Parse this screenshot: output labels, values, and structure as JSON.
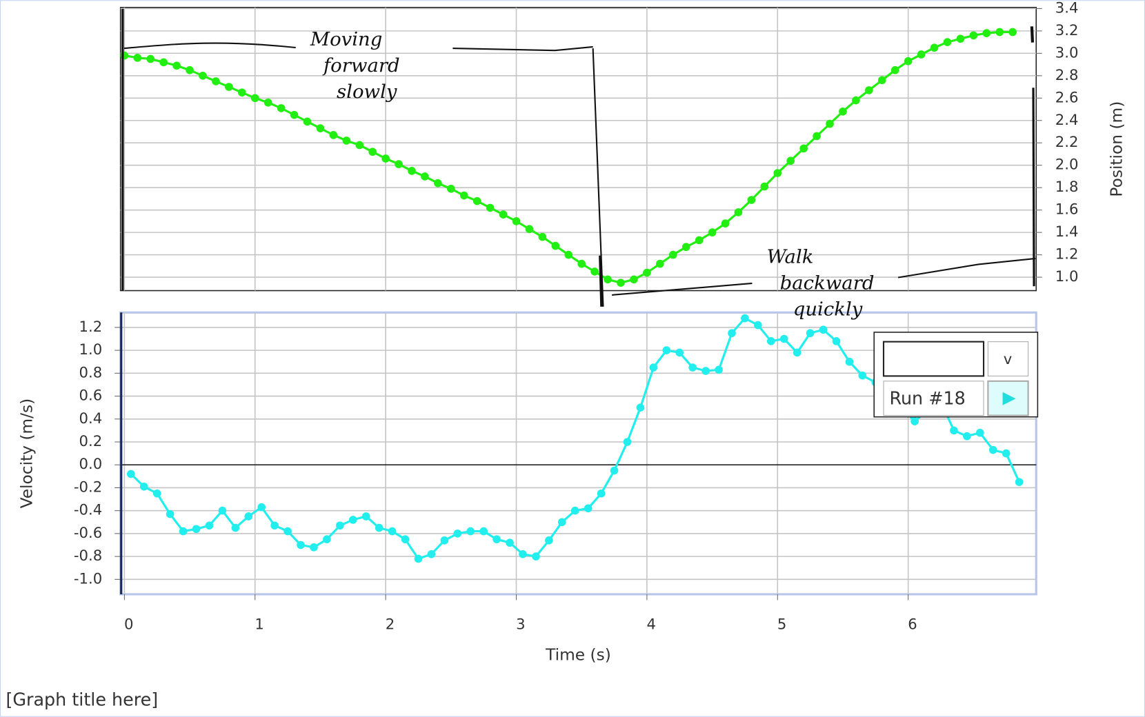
{
  "chart_data": [
    {
      "type": "scatter-line",
      "y_label": "Position (m)",
      "x": [
        0,
        0.1,
        0.2,
        0.3,
        0.4,
        0.5,
        0.6,
        0.7,
        0.8,
        0.9,
        1.0,
        1.1,
        1.2,
        1.3,
        1.4,
        1.5,
        1.6,
        1.7,
        1.8,
        1.9,
        2.0,
        2.1,
        2.2,
        2.3,
        2.4,
        2.5,
        2.6,
        2.7,
        2.8,
        2.9,
        3.0,
        3.1,
        3.2,
        3.3,
        3.4,
        3.5,
        3.6,
        3.7,
        3.8,
        3.9,
        4.0,
        4.1,
        4.2,
        4.3,
        4.4,
        4.5,
        4.6,
        4.7,
        4.8,
        4.9,
        5.0,
        5.1,
        5.2,
        5.3,
        5.4,
        5.5,
        5.6,
        5.7,
        5.8,
        5.9,
        6.0,
        6.1,
        6.2,
        6.3,
        6.4,
        6.5,
        6.6,
        6.7,
        6.8
      ],
      "series": [
        {
          "color": "#22ee11",
          "values": [
            2.98,
            2.96,
            2.95,
            2.92,
            2.89,
            2.85,
            2.8,
            2.75,
            2.7,
            2.65,
            2.6,
            2.56,
            2.51,
            2.45,
            2.39,
            2.33,
            2.27,
            2.22,
            2.18,
            2.12,
            2.06,
            2.01,
            1.95,
            1.9,
            1.84,
            1.79,
            1.73,
            1.68,
            1.62,
            1.56,
            1.5,
            1.43,
            1.36,
            1.28,
            1.2,
            1.12,
            1.05,
            0.98,
            0.95,
            0.98,
            1.04,
            1.12,
            1.2,
            1.27,
            1.33,
            1.4,
            1.48,
            1.58,
            1.69,
            1.81,
            1.93,
            2.04,
            2.15,
            2.26,
            2.37,
            2.48,
            2.58,
            2.67,
            2.76,
            2.85,
            2.93,
            2.99,
            3.05,
            3.1,
            3.13,
            3.16,
            3.18,
            3.19,
            3.19
          ]
        }
      ],
      "xlim": [
        -0.03,
        6.98
      ],
      "ylim": [
        0.88,
        3.41
      ],
      "yticks": [
        {
          "value": 1.0,
          "label": "1.0"
        },
        1.2,
        1.4,
        1.6,
        1.8,
        {
          "value": 2.0,
          "label": "2.0"
        },
        2.2,
        2.4,
        2.6,
        2.8,
        {
          "value": 3.0,
          "label": "3.0"
        },
        3.2,
        3.4
      ],
      "y_axis_side": "right",
      "grid": true,
      "annotations": [
        [
          "Moving",
          "forward",
          "slowly"
        ],
        [
          "Walk",
          "backward",
          "quickly"
        ]
      ]
    },
    {
      "type": "scatter-line",
      "x_label": "Time (s)",
      "y_label": "Velocity (m/s)",
      "x": [
        0.05,
        0.15,
        0.25,
        0.35,
        0.45,
        0.55,
        0.65,
        0.75,
        0.85,
        0.95,
        1.05,
        1.15,
        1.25,
        1.35,
        1.45,
        1.55,
        1.65,
        1.75,
        1.85,
        1.95,
        2.05,
        2.15,
        2.25,
        2.35,
        2.45,
        2.55,
        2.65,
        2.75,
        2.85,
        2.95,
        3.05,
        3.15,
        3.25,
        3.35,
        3.45,
        3.55,
        3.65,
        3.75,
        3.85,
        3.95,
        4.05,
        4.15,
        4.25,
        4.35,
        4.45,
        4.55,
        4.65,
        4.75,
        4.85,
        4.95,
        5.05,
        5.15,
        5.25,
        5.35,
        5.45,
        5.55,
        5.65,
        5.75,
        5.85,
        5.95,
        6.05,
        6.15,
        6.25,
        6.35,
        6.45,
        6.55,
        6.65,
        6.75,
        6.85
      ],
      "series": [
        {
          "name": "Run #18",
          "color": "#22eeee",
          "values": [
            -0.08,
            -0.19,
            -0.25,
            -0.43,
            -0.58,
            -0.56,
            -0.53,
            -0.4,
            -0.55,
            -0.45,
            -0.37,
            -0.53,
            -0.58,
            -0.7,
            -0.72,
            -0.65,
            -0.53,
            -0.48,
            -0.45,
            -0.55,
            -0.58,
            -0.65,
            -0.82,
            -0.78,
            -0.66,
            -0.6,
            -0.58,
            -0.58,
            -0.65,
            -0.68,
            -0.78,
            -0.8,
            -0.66,
            -0.5,
            -0.4,
            -0.38,
            -0.25,
            -0.05,
            0.2,
            0.5,
            0.85,
            1.0,
            0.98,
            0.85,
            0.82,
            0.83,
            1.15,
            1.28,
            1.22,
            1.08,
            1.1,
            0.98,
            1.15,
            1.18,
            1.08,
            0.9,
            0.78,
            0.72,
            0.62,
            0.5,
            0.38,
            0.48,
            0.55,
            0.3,
            0.25,
            0.28,
            0.13,
            0.1,
            -0.15
          ]
        }
      ],
      "xlim": [
        -0.03,
        6.98
      ],
      "xticks": [
        0,
        1,
        2,
        3,
        4,
        5,
        6
      ],
      "ylim": [
        -1.13,
        1.33
      ],
      "yticks": [
        {
          "value": -1.0,
          "label": "-1.0"
        },
        -0.8,
        -0.6,
        -0.4,
        -0.2,
        {
          "value": 0.0,
          "label": "0.0"
        },
        0.2,
        0.4,
        0.6,
        0.8,
        {
          "value": 1.0,
          "label": "1.0"
        },
        1.2
      ],
      "y_axis_side": "left",
      "grid": true,
      "zero_line": true
    }
  ],
  "ui": {
    "dropdown": "v"
  },
  "graph_title": "[Graph title here]"
}
